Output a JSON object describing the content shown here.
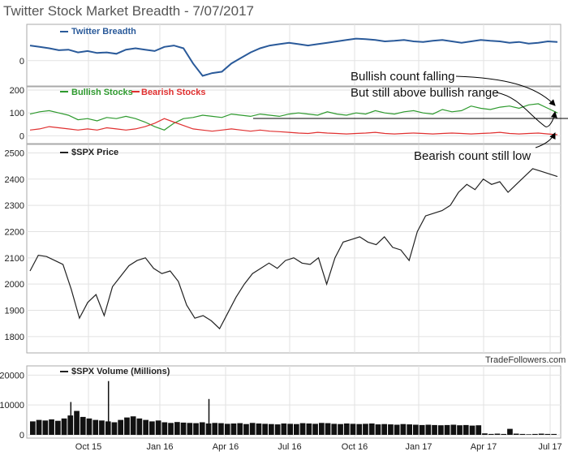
{
  "title": "Twitter Stock Market Breadth - 7/07/2017",
  "credit": "TradeFollowers.com",
  "colors": {
    "breadth": "#2a5a9a",
    "bullish": "#2e9a2e",
    "bearish": "#e03030",
    "price": "#222222",
    "volume": "#111111",
    "grid": "#e2e2e2",
    "annotation": "#000000"
  },
  "x_ticks": [
    "Oct 15",
    "Jan 16",
    "Apr 16",
    "Jul 16",
    "Oct 16",
    "Jan 17",
    "Apr 17",
    "Jul 17"
  ],
  "annotations": [
    "Bullish count falling",
    "But still above bullish range",
    "Bearish count still low"
  ],
  "chart_data": [
    {
      "type": "line",
      "panel": "breadth",
      "series": [
        {
          "name": "Twitter Breadth",
          "color": "#2a5a9a",
          "values": [
            55,
            50,
            45,
            38,
            40,
            30,
            35,
            28,
            30,
            25,
            40,
            45,
            40,
            35,
            50,
            55,
            45,
            -10,
            -55,
            -45,
            -40,
            -10,
            10,
            30,
            45,
            55,
            60,
            65,
            60,
            55,
            60,
            65,
            70,
            75,
            80,
            78,
            75,
            70,
            72,
            75,
            70,
            68,
            72,
            75,
            70,
            65,
            70,
            75,
            72,
            70,
            65,
            68,
            62,
            65,
            70,
            68
          ]
        }
      ],
      "ylim": [
        -80,
        120
      ],
      "y_ticks": [
        0
      ]
    },
    {
      "type": "line",
      "panel": "bullish_bearish",
      "series": [
        {
          "name": "Bullish Stocks",
          "color": "#2e9a2e",
          "values": [
            95,
            105,
            110,
            100,
            90,
            70,
            75,
            65,
            80,
            75,
            85,
            75,
            60,
            40,
            25,
            55,
            75,
            80,
            90,
            85,
            80,
            95,
            90,
            85,
            95,
            90,
            85,
            95,
            100,
            95,
            90,
            105,
            95,
            90,
            100,
            95,
            110,
            100,
            95,
            105,
            110,
            100,
            95,
            115,
            105,
            110,
            130,
            120,
            115,
            125,
            130,
            120,
            135,
            140,
            120,
            100
          ]
        },
        {
          "name": "Bearish Stocks",
          "color": "#e03030",
          "values": [
            25,
            30,
            40,
            35,
            30,
            25,
            30,
            25,
            35,
            30,
            25,
            30,
            40,
            55,
            75,
            60,
            45,
            30,
            25,
            20,
            25,
            30,
            25,
            20,
            25,
            20,
            18,
            15,
            12,
            10,
            15,
            12,
            10,
            8,
            10,
            12,
            15,
            10,
            8,
            10,
            12,
            10,
            8,
            10,
            12,
            10,
            8,
            10,
            12,
            15,
            10,
            8,
            10,
            12,
            8,
            5
          ]
        }
      ],
      "ylim": [
        -20,
        200
      ],
      "y_ticks": [
        0,
        100,
        200
      ]
    },
    {
      "type": "line",
      "panel": "price",
      "series": [
        {
          "name": "$SPX Price",
          "color": "#222222",
          "values": [
            2050,
            2110,
            2105,
            2090,
            2075,
            1980,
            1870,
            1930,
            1960,
            1880,
            1990,
            2030,
            2070,
            2090,
            2100,
            2060,
            2040,
            2050,
            2010,
            1920,
            1870,
            1880,
            1860,
            1830,
            1890,
            1950,
            2000,
            2040,
            2060,
            2080,
            2060,
            2090,
            2100,
            2080,
            2075,
            2100,
            2000,
            2100,
            2160,
            2170,
            2180,
            2160,
            2150,
            2180,
            2140,
            2130,
            2090,
            2200,
            2260,
            2270,
            2280,
            2300,
            2350,
            2380,
            2360,
            2400,
            2380,
            2390,
            2350,
            2380,
            2410,
            2440,
            2430,
            2420,
            2410
          ]
        }
      ],
      "ylim": [
        1750,
        2520
      ],
      "y_ticks": [
        1800,
        1900,
        2000,
        2100,
        2200,
        2300,
        2400,
        2500
      ]
    },
    {
      "type": "bar",
      "panel": "volume",
      "series": [
        {
          "name": "$SPX Volume (Millions)",
          "color": "#111111",
          "values": [
            4500,
            5000,
            4800,
            5200,
            4700,
            5500,
            6500,
            8000,
            6000,
            5500,
            5000,
            4800,
            4500,
            4200,
            5000,
            5800,
            6200,
            5500,
            5000,
            4500,
            4800,
            4200,
            4000,
            4300,
            4100,
            4000,
            3900,
            4200,
            3800,
            4000,
            3900,
            3700,
            3800,
            3900,
            3600,
            4000,
            3800,
            3700,
            3600,
            3500,
            3800,
            3700,
            3600,
            3900,
            3800,
            3700,
            4000,
            3900,
            3700,
            3600,
            3800,
            3700,
            3600,
            3700,
            3800,
            3500,
            3600,
            3500,
            3400,
            3600,
            3500,
            3400,
            3300,
            3400,
            3300,
            3200,
            3300,
            3400,
            3200,
            3300,
            3100,
            3200,
            500,
            300,
            400,
            300,
            2000,
            400,
            300,
            200,
            300,
            400,
            300,
            300
          ]
        }
      ],
      "spikes": [
        {
          "index": 12,
          "value": 18000
        },
        {
          "index": 6,
          "value": 11000
        },
        {
          "index": 28,
          "value": 12000
        }
      ],
      "ylim": [
        0,
        22000
      ],
      "y_ticks": [
        0,
        10000,
        20000
      ]
    }
  ]
}
